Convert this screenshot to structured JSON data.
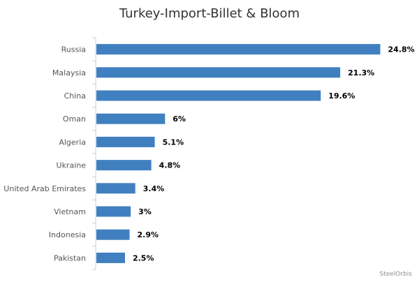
{
  "chart_data": {
    "type": "bar",
    "orientation": "horizontal",
    "title": "Turkey-Import-Billet & Bloom",
    "categories": [
      "Russia",
      "Malaysia",
      "China",
      "Oman",
      "Algeria",
      "Ukraine",
      "United Arab Emirates",
      "Vietnam",
      "Indonesia",
      "Pakistan"
    ],
    "values": [
      24.8,
      21.3,
      19.6,
      6,
      5.1,
      4.8,
      3.4,
      3,
      2.9,
      2.5
    ],
    "value_labels": [
      "24.8%",
      "21.3%",
      "19.6%",
      "6%",
      "5.1%",
      "4.8%",
      "3.4%",
      "3%",
      "2.9%",
      "2.5%"
    ],
    "xlim": [
      0,
      28
    ],
    "xlabel": "",
    "ylabel": "",
    "grid": false,
    "legend": "none",
    "bar_color": "#4080c0",
    "credit": "SteelOrbis"
  }
}
